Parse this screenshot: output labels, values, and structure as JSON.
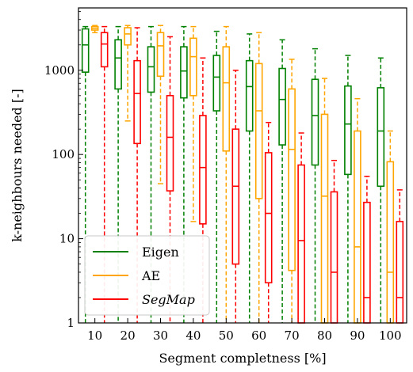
{
  "chart_data": {
    "type": "box",
    "xlabel": "Segment completness [%]",
    "ylabel": "k-neighbours needed [-]",
    "x_scale": "categorical",
    "y_scale": "log",
    "ylim": [
      1,
      5500
    ],
    "categories": [
      "10",
      "20",
      "30",
      "40",
      "50",
      "60",
      "70",
      "80",
      "90",
      "100"
    ],
    "y_ticks": [
      1,
      10,
      100,
      1000
    ],
    "y_tick_labels": [
      "1",
      "10",
      "100",
      "1000"
    ],
    "legend": {
      "position": "lower-left"
    },
    "series": [
      {
        "name": "Eigen",
        "color": "#008000",
        "legend_label": "Eigen",
        "italic": false,
        "boxes": [
          {
            "whislo": 1,
            "q1": 950,
            "med": 2000,
            "q3": 3100,
            "whishi": 3300
          },
          {
            "whislo": 1,
            "q1": 600,
            "med": 1400,
            "q3": 2300,
            "whishi": 3300
          },
          {
            "whislo": 1,
            "q1": 550,
            "med": 1100,
            "q3": 1900,
            "whishi": 3300
          },
          {
            "whislo": 1,
            "q1": 470,
            "med": 980,
            "q3": 1900,
            "whishi": 3300
          },
          {
            "whislo": 1,
            "q1": 330,
            "med": 830,
            "q3": 1500,
            "whishi": 2900
          },
          {
            "whislo": 1,
            "q1": 190,
            "med": 640,
            "q3": 1300,
            "whishi": 2700
          },
          {
            "whislo": 1,
            "q1": 130,
            "med": 450,
            "q3": 1050,
            "whishi": 2300
          },
          {
            "whislo": 1,
            "q1": 75,
            "med": 290,
            "q3": 780,
            "whishi": 1800
          },
          {
            "whislo": 1,
            "q1": 58,
            "med": 230,
            "q3": 650,
            "whishi": 1500
          },
          {
            "whislo": 1,
            "q1": 42,
            "med": 190,
            "q3": 620,
            "whishi": 1400
          }
        ]
      },
      {
        "name": "AE",
        "color": "#FFA500",
        "legend_label": "AE",
        "italic": false,
        "boxes": [
          {
            "whislo": 2800,
            "q1": 3000,
            "med": 3150,
            "q3": 3300,
            "whishi": 3400
          },
          {
            "whislo": 250,
            "q1": 2000,
            "med": 2700,
            "q3": 3200,
            "whishi": 3400
          },
          {
            "whislo": 45,
            "q1": 850,
            "med": 1950,
            "q3": 2800,
            "whishi": 3400
          },
          {
            "whislo": 16,
            "q1": 500,
            "med": 1450,
            "q3": 2400,
            "whishi": 3300
          },
          {
            "whislo": 1,
            "q1": 110,
            "med": 710,
            "q3": 1900,
            "whishi": 3300
          },
          {
            "whislo": 1,
            "q1": 30,
            "med": 330,
            "q3": 1200,
            "whishi": 2800
          },
          {
            "whislo": 1,
            "q1": 4.2,
            "med": 115,
            "q3": 600,
            "whishi": 1350
          },
          {
            "whislo": 1,
            "q1": 1,
            "med": 32,
            "q3": 300,
            "whishi": 800
          },
          {
            "whislo": 1,
            "q1": 1,
            "med": 8,
            "q3": 190,
            "whishi": 460
          },
          {
            "whislo": 1,
            "q1": 1,
            "med": 4,
            "q3": 82,
            "whishi": 190
          }
        ]
      },
      {
        "name": "SegMap",
        "color": "#FF0000",
        "legend_label": "SegMap",
        "italic": true,
        "boxes": [
          {
            "whislo": 1,
            "q1": 1100,
            "med": 2050,
            "q3": 2800,
            "whishi": 3300
          },
          {
            "whislo": 1,
            "q1": 135,
            "med": 530,
            "q3": 1300,
            "whishi": 3200
          },
          {
            "whislo": 1,
            "q1": 37,
            "med": 160,
            "q3": 500,
            "whishi": 2500
          },
          {
            "whislo": 1,
            "q1": 15,
            "med": 70,
            "q3": 290,
            "whishi": 1400
          },
          {
            "whislo": 1,
            "q1": 5,
            "med": 42,
            "q3": 200,
            "whishi": 1000
          },
          {
            "whislo": 1,
            "q1": 3,
            "med": 20,
            "q3": 105,
            "whishi": 240
          },
          {
            "whislo": 1,
            "q1": 1,
            "med": 9.5,
            "q3": 75,
            "whishi": 180
          },
          {
            "whislo": 1,
            "q1": 1,
            "med": 4,
            "q3": 36,
            "whishi": 85
          },
          {
            "whislo": 1,
            "q1": 1,
            "med": 2,
            "q3": 27,
            "whishi": 55
          },
          {
            "whislo": 1,
            "q1": 1,
            "med": 2,
            "q3": 16,
            "whishi": 38
          }
        ]
      }
    ]
  }
}
